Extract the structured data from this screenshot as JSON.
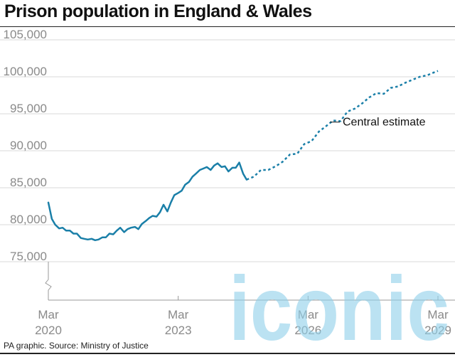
{
  "title": "Prison population in England & Wales",
  "source": "PA graphic. Source: Ministry of Justice",
  "watermark": "iconic",
  "colors": {
    "line": "#1a7fa8",
    "grid": "#d9d9d9",
    "axis_text": "#8a8a8a",
    "watermark": "#8fd0ea"
  },
  "chart_data": {
    "type": "line",
    "title": "Prison population in England & Wales",
    "xlabel": "",
    "ylabel": "",
    "ylim": [
      75000,
      105000
    ],
    "xlim": [
      2020.17,
      2029.17
    ],
    "y_ticks": [
      "105,000",
      "100,000",
      "95,000",
      "90,000",
      "85,000",
      "80,000",
      "75,000"
    ],
    "y_tick_values": [
      105000,
      100000,
      95000,
      90000,
      85000,
      80000,
      75000
    ],
    "x_ticks": [
      {
        "month": "Mar",
        "year": "2020",
        "value": 2020.17
      },
      {
        "month": "Mar",
        "year": "2023",
        "value": 2023.17
      },
      {
        "month": "Mar",
        "year": "2026",
        "value": 2026.17
      },
      {
        "month": "Mar",
        "year": "2029",
        "value": 2029.17
      }
    ],
    "y_axis_break": true,
    "grid": "horizontal",
    "series": [
      {
        "name": "",
        "style": "solid",
        "x": [
          2020.17,
          2020.25,
          2020.33,
          2020.42,
          2020.5,
          2020.58,
          2020.67,
          2020.75,
          2020.83,
          2020.92,
          2021.0,
          2021.08,
          2021.17,
          2021.25,
          2021.33,
          2021.42,
          2021.5,
          2021.58,
          2021.67,
          2021.75,
          2021.83,
          2021.92,
          2022.0,
          2022.08,
          2022.17,
          2022.25,
          2022.33,
          2022.42,
          2022.5,
          2022.58,
          2022.67,
          2022.75,
          2022.83,
          2022.92,
          2023.0,
          2023.08,
          2023.17,
          2023.25,
          2023.33,
          2023.42,
          2023.5,
          2023.58,
          2023.67,
          2023.75,
          2023.83,
          2023.92,
          2024.0,
          2024.08,
          2024.17,
          2024.25,
          2024.33,
          2024.42,
          2024.5,
          2024.58,
          2024.67,
          2024.75
        ],
        "values": [
          83000,
          80800,
          80000,
          79500,
          79600,
          79200,
          79200,
          78800,
          78800,
          78200,
          78100,
          78000,
          78100,
          77900,
          78000,
          78300,
          78300,
          78800,
          78700,
          79200,
          79600,
          79000,
          79400,
          79600,
          79700,
          79400,
          80100,
          80500,
          80900,
          81200,
          81100,
          81700,
          82700,
          81800,
          83000,
          84000,
          84300,
          84600,
          85400,
          85800,
          86500,
          86900,
          87400,
          87600,
          87800,
          87400,
          88000,
          88300,
          87800,
          87900,
          87200,
          87700,
          87700,
          88400,
          86900,
          86100
        ]
      },
      {
        "name": "Central estimate",
        "style": "dashed",
        "x": [
          2024.75,
          2024.92,
          2025.08,
          2025.25,
          2025.42,
          2025.58,
          2025.75,
          2025.92,
          2026.08,
          2026.25,
          2026.42,
          2026.58,
          2026.75,
          2026.92,
          2027.08,
          2027.25,
          2027.42,
          2027.58,
          2027.75,
          2027.92,
          2028.08,
          2028.25,
          2028.42,
          2028.58,
          2028.75,
          2028.92,
          2029.08,
          2029.17
        ],
        "values": [
          86100,
          86500,
          87400,
          87400,
          87900,
          88500,
          89500,
          89600,
          90900,
          91300,
          92600,
          93300,
          94100,
          94000,
          95300,
          95700,
          96400,
          97200,
          97800,
          97700,
          98500,
          98700,
          99200,
          99600,
          100000,
          100200,
          100600,
          100800
        ]
      }
    ],
    "annotations": [
      "Central estimate"
    ]
  }
}
